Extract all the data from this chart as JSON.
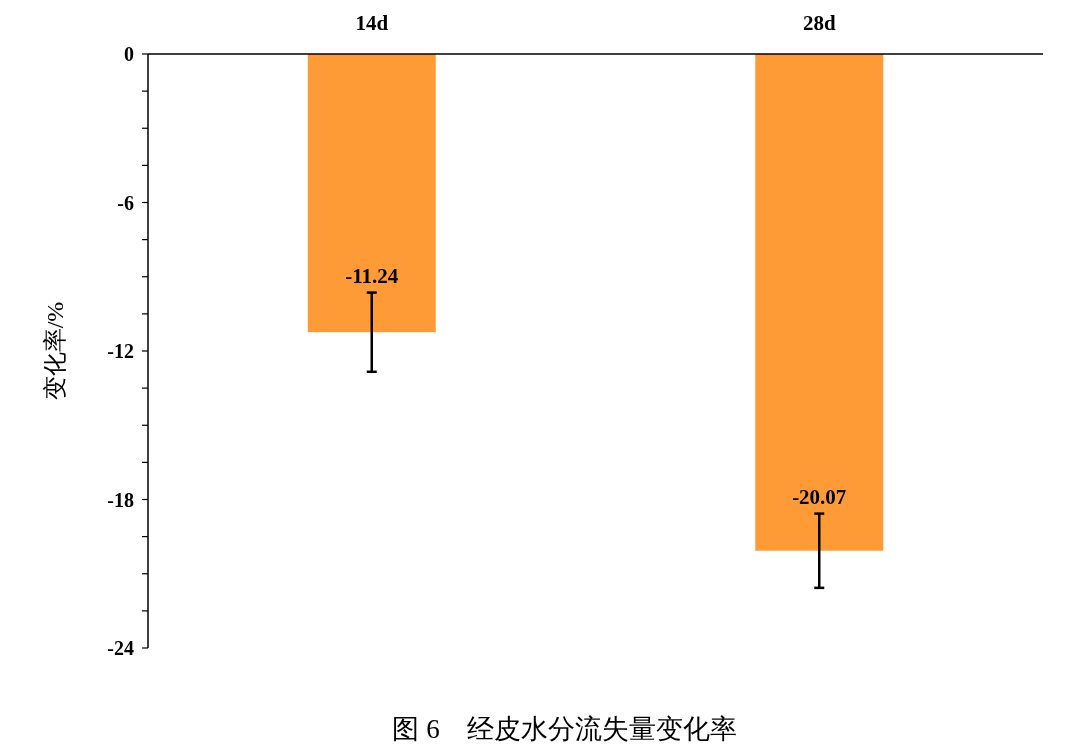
{
  "chart_data": {
    "type": "bar",
    "title": "图 6　经皮水分流失量变化率",
    "ylabel": "变化率/%",
    "categories": [
      "14d",
      "28d"
    ],
    "series": [
      {
        "color": "#fe9b37",
        "values": [
          -11.24,
          -20.07
        ],
        "errors": [
          1.6,
          1.5
        ]
      }
    ],
    "ylim": [
      -24,
      0
    ],
    "yticks": [
      0,
      {
        "value": -1.5,
        "label": null
      },
      {
        "value": -3,
        "label": null
      },
      {
        "value": -4.5,
        "label": null
      },
      -6,
      {
        "value": -7.5,
        "label": null
      },
      {
        "value": -9,
        "label": null
      },
      {
        "value": -10.5,
        "label": null
      },
      -12,
      {
        "value": -13.5,
        "label": null
      },
      {
        "value": -15,
        "label": null
      },
      {
        "value": -16.5,
        "label": null
      },
      -18,
      {
        "value": -19.5,
        "label": null
      },
      {
        "value": -21,
        "label": null
      },
      {
        "value": -22.5,
        "label": null
      },
      -24
    ],
    "data_labels": true,
    "grid": false
  }
}
